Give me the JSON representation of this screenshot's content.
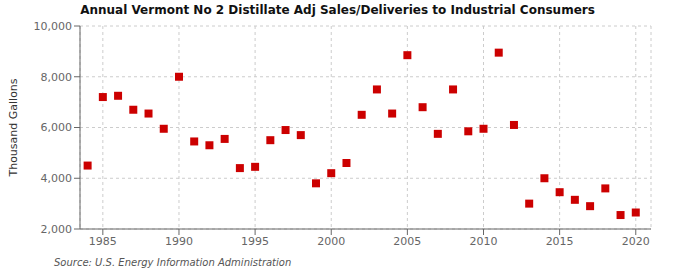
{
  "chart_data": {
    "type": "scatter",
    "title": "Annual Vermont No 2 Distillate Adj Sales/Deliveries to Industrial Consumers",
    "ylabel": "Thousand Gallons",
    "annotations": [
      "Source: U.S. Energy Information Administration"
    ],
    "x": [
      1984,
      1985,
      1986,
      1987,
      1988,
      1989,
      1990,
      1991,
      1992,
      1993,
      1994,
      1995,
      1996,
      1997,
      1998,
      1999,
      2000,
      2001,
      2002,
      2003,
      2004,
      2005,
      2006,
      2007,
      2008,
      2009,
      2010,
      2011,
      2012,
      2013,
      2014,
      2015,
      2016,
      2017,
      2018,
      2019,
      2020
    ],
    "values": [
      4500,
      7200,
      7250,
      6700,
      6550,
      5950,
      8000,
      5450,
      5300,
      5550,
      4400,
      4450,
      5500,
      5900,
      5700,
      3800,
      4200,
      4600,
      6500,
      7500,
      6550,
      8850,
      6800,
      5750,
      7500,
      5850,
      5950,
      8950,
      6100,
      3000,
      4000,
      3450,
      3150,
      2900,
      3600,
      2550,
      2650
    ],
    "color": "#cc0000",
    "marker": "square",
    "xlim": [
      1983.5,
      2021
    ],
    "xticks": [
      1985,
      1990,
      1995,
      2000,
      2005,
      2010,
      2015,
      2020
    ],
    "ylim": [
      2000,
      10000
    ],
    "yticks": [
      {
        "value": 2000,
        "label": "2,000"
      },
      {
        "value": 4000,
        "label": "4,000"
      },
      {
        "value": 6000,
        "label": "6,000"
      },
      {
        "value": 8000,
        "label": "8,000"
      },
      {
        "value": 10000,
        "label": "10,000"
      }
    ],
    "grid": true
  }
}
